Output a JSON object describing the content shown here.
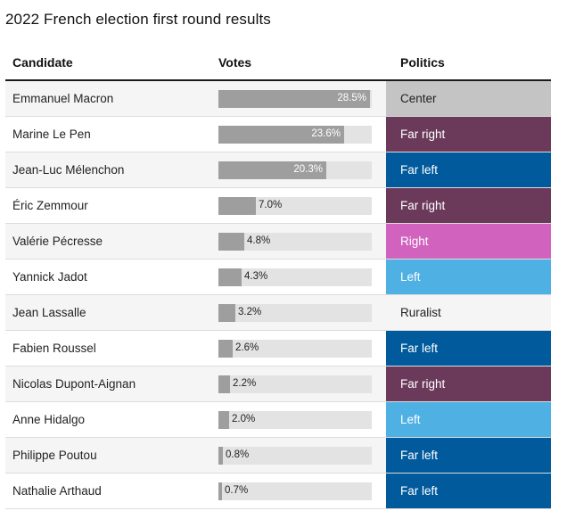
{
  "title": "2022 French election first round results",
  "headers": {
    "candidate": "Candidate",
    "votes": "Votes",
    "politics": "Politics"
  },
  "chart_data": {
    "type": "table",
    "title": "2022 French election first round results",
    "columns": [
      "Candidate",
      "Votes",
      "Politics"
    ],
    "vote_scale_max": 28.5,
    "rows": [
      {
        "candidate": "Emmanuel Macron",
        "votes": 28.5,
        "votes_label": "28.5%",
        "politics": "Center",
        "pol_color": "#c4c4c4",
        "pol_text": "#222222"
      },
      {
        "candidate": "Marine Le Pen",
        "votes": 23.6,
        "votes_label": "23.6%",
        "politics": "Far right",
        "pol_color": "#6b3a5a",
        "pol_text": "#ffffff"
      },
      {
        "candidate": "Jean-Luc Mélenchon",
        "votes": 20.3,
        "votes_label": "20.3%",
        "politics": "Far left",
        "pol_color": "#005a9c",
        "pol_text": "#ffffff"
      },
      {
        "candidate": "Éric Zemmour",
        "votes": 7.0,
        "votes_label": "7.0%",
        "politics": "Far right",
        "pol_color": "#6b3a5a",
        "pol_text": "#ffffff"
      },
      {
        "candidate": "Valérie Pécresse",
        "votes": 4.8,
        "votes_label": "4.8%",
        "politics": "Right",
        "pol_color": "#d163bf",
        "pol_text": "#ffffff"
      },
      {
        "candidate": "Yannick Jadot",
        "votes": 4.3,
        "votes_label": "4.3%",
        "politics": "Left",
        "pol_color": "#4fb0e3",
        "pol_text": "#ffffff"
      },
      {
        "candidate": "Jean Lassalle",
        "votes": 3.2,
        "votes_label": "3.2%",
        "politics": "Ruralist",
        "pol_color": "",
        "pol_text": "#222222"
      },
      {
        "candidate": "Fabien Roussel",
        "votes": 2.6,
        "votes_label": "2.6%",
        "politics": "Far left",
        "pol_color": "#005a9c",
        "pol_text": "#ffffff"
      },
      {
        "candidate": "Nicolas Dupont-Aignan",
        "votes": 2.2,
        "votes_label": "2.2%",
        "politics": "Far right",
        "pol_color": "#6b3a5a",
        "pol_text": "#ffffff"
      },
      {
        "candidate": "Anne Hidalgo",
        "votes": 2.0,
        "votes_label": "2.0%",
        "politics": "Left",
        "pol_color": "#4fb0e3",
        "pol_text": "#ffffff"
      },
      {
        "candidate": "Philippe Poutou",
        "votes": 0.8,
        "votes_label": "0.8%",
        "politics": "Far left",
        "pol_color": "#005a9c",
        "pol_text": "#ffffff"
      },
      {
        "candidate": "Nathalie Arthaud",
        "votes": 0.7,
        "votes_label": "0.7%",
        "politics": "Far left",
        "pol_color": "#005a9c",
        "pol_text": "#ffffff"
      }
    ]
  }
}
